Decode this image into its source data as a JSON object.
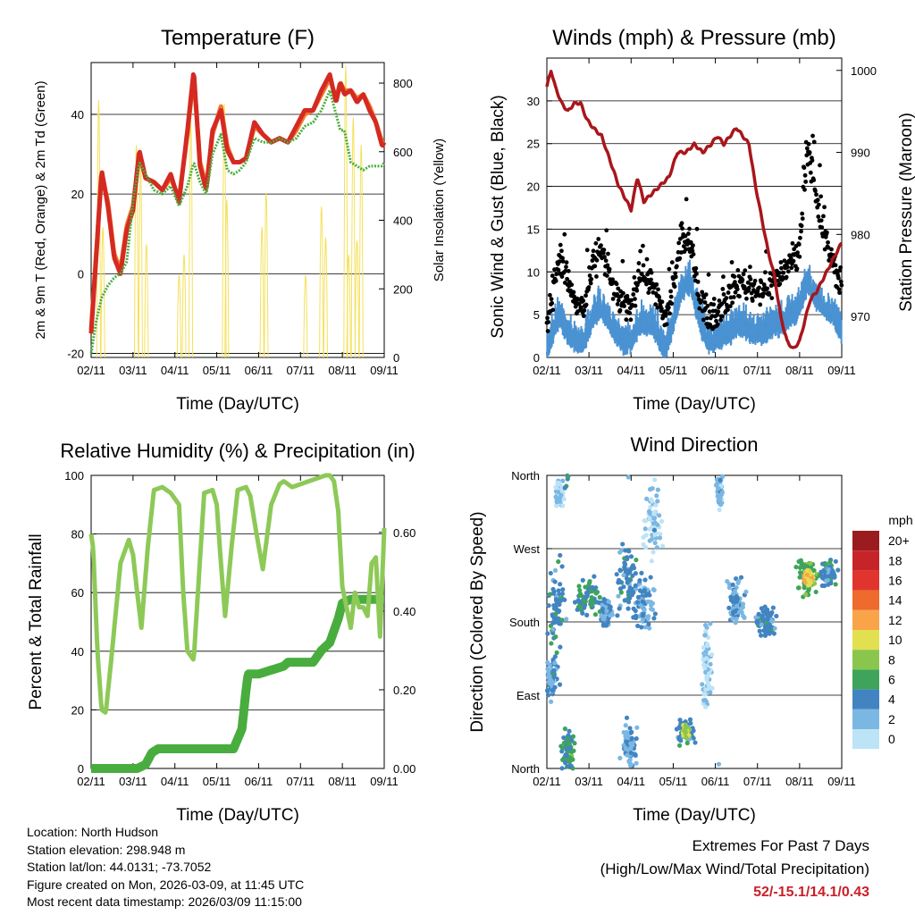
{
  "chart_data": [
    {
      "id": "temp",
      "type": "line",
      "title": "Temperature (F)",
      "xlabel": "Time (Day/UTC)",
      "ylabel_left": "2m & 9m T (Red, Orange) & 2m Td (Green)",
      "ylabel_right": "Solar Insolation (Yellow)",
      "x_ticks": [
        "02/11",
        "03/11",
        "04/11",
        "05/11",
        "06/11",
        "07/11",
        "08/11",
        "09/11"
      ],
      "x_range": [
        0,
        7
      ],
      "ylim_left": [
        -21,
        53
      ],
      "yticks_left": [
        -20,
        0,
        20,
        40
      ],
      "ylim_right": [
        0,
        860
      ],
      "yticks_right": [
        0,
        200,
        400,
        600,
        800
      ],
      "series": [
        {
          "name": "9m T",
          "color": "#f07a2c",
          "x": [
            0,
            0.12,
            0.25,
            0.4,
            0.55,
            0.7,
            0.85,
            1.0,
            1.15,
            1.3,
            1.5,
            1.7,
            1.9,
            2.1,
            2.3,
            2.45,
            2.6,
            2.75,
            2.9,
            3.1,
            3.25,
            3.4,
            3.55,
            3.7,
            3.9,
            4.1,
            4.3,
            4.5,
            4.7,
            4.9,
            5.1,
            5.3,
            5.5,
            5.7,
            5.85,
            5.95,
            6.05,
            6.2,
            6.35,
            6.5,
            6.65,
            6.8,
            6.95,
            7.0
          ],
          "values": [
            -14,
            5,
            25,
            18,
            5,
            1,
            12,
            17,
            30,
            24,
            23,
            21,
            24,
            19,
            35,
            50,
            28,
            22,
            35,
            42,
            32,
            28,
            28,
            29,
            37,
            35,
            33,
            34,
            33,
            36,
            40,
            41,
            45,
            49,
            44,
            48,
            46,
            46,
            44,
            45,
            42,
            38,
            33,
            33
          ]
        },
        {
          "name": "2m T",
          "color": "#d42a22",
          "x": [
            0,
            0.12,
            0.25,
            0.4,
            0.55,
            0.7,
            0.85,
            1.0,
            1.15,
            1.3,
            1.5,
            1.7,
            1.9,
            2.1,
            2.3,
            2.45,
            2.6,
            2.75,
            2.9,
            3.1,
            3.25,
            3.4,
            3.55,
            3.7,
            3.9,
            4.1,
            4.3,
            4.5,
            4.7,
            4.9,
            5.1,
            5.3,
            5.5,
            5.7,
            5.85,
            5.95,
            6.05,
            6.2,
            6.35,
            6.5,
            6.65,
            6.8,
            6.95,
            7.0
          ],
          "values": [
            -15,
            4,
            26,
            17,
            4,
            0,
            11,
            16,
            31,
            24,
            23,
            21,
            25,
            18,
            36,
            51,
            27,
            21,
            36,
            41,
            31,
            28,
            28,
            29,
            38,
            35,
            33,
            34,
            33,
            37,
            41,
            41,
            46,
            50,
            43,
            48,
            45,
            46,
            43,
            45,
            41,
            38,
            32,
            33
          ]
        },
        {
          "name": "2m Td",
          "color": "#4bae3c",
          "x": [
            0,
            0.12,
            0.25,
            0.4,
            0.55,
            0.7,
            0.85,
            1.0,
            1.15,
            1.3,
            1.5,
            1.7,
            1.9,
            2.1,
            2.3,
            2.45,
            2.6,
            2.75,
            2.9,
            3.1,
            3.25,
            3.4,
            3.55,
            3.7,
            3.9,
            4.1,
            4.3,
            4.5,
            4.7,
            4.9,
            5.1,
            5.3,
            5.5,
            5.7,
            5.85,
            5.95,
            6.05,
            6.2,
            6.35,
            6.5,
            6.65,
            6.8,
            6.95,
            7.0
          ],
          "values": [
            -20,
            -12,
            -6,
            -3,
            -1,
            0,
            3,
            18,
            28,
            25,
            21,
            20,
            22,
            17,
            22,
            28,
            23,
            20,
            30,
            35,
            26,
            25,
            26,
            28,
            34,
            33,
            33,
            34,
            33,
            34,
            37,
            38,
            41,
            46,
            40,
            36,
            36,
            28,
            27,
            26,
            27,
            27,
            27,
            28
          ]
        },
        {
          "name": "Solar Insolation",
          "color": "#f5e05a",
          "axis": "right",
          "peaks_x": [
            0.18,
            0.28,
            1.08,
            1.18,
            1.32,
            2.1,
            2.22,
            2.38,
            3.18,
            3.24,
            4.08,
            4.18,
            5.12,
            5.5,
            5.6,
            6.08,
            6.15,
            6.26,
            6.35,
            6.45
          ],
          "peaks_value": [
            750,
            380,
            620,
            560,
            330,
            240,
            300,
            690,
            740,
            460,
            380,
            480,
            240,
            440,
            350,
            850,
            300,
            700,
            340,
            620
          ]
        }
      ]
    },
    {
      "id": "wind",
      "type": "scatter",
      "title": "Winds (mph) & Pressure (mb)",
      "xlabel": "Time (Day/UTC)",
      "ylabel_left": "Sonic Wind & Gust (Blue, Black)",
      "ylabel_right": "Station Pressure (Maroon)",
      "x_ticks": [
        "02/11",
        "03/11",
        "04/11",
        "05/11",
        "06/11",
        "07/11",
        "08/11",
        "09/11"
      ],
      "x_range": [
        0,
        7
      ],
      "ylim_left": [
        0,
        35
      ],
      "yticks_left": [
        0,
        5,
        10,
        15,
        20,
        25,
        30
      ],
      "ylim_right": [
        965,
        1001.5
      ],
      "yticks_right": [
        970,
        980,
        990,
        1000
      ],
      "series": [
        {
          "name": "Sonic Wind",
          "color": "#4a92d2",
          "x": [
            0,
            0.3,
            0.5,
            0.7,
            0.9,
            1.1,
            1.3,
            1.5,
            1.8,
            2.0,
            2.2,
            2.5,
            2.8,
            3.0,
            3.2,
            3.4,
            3.6,
            3.8,
            4.0,
            4.3,
            4.6,
            4.9,
            5.2,
            5.4,
            5.6,
            5.8,
            6.0,
            6.2,
            6.4,
            6.6,
            6.8,
            7.0
          ],
          "values": [
            2,
            6,
            4,
            3,
            3,
            6,
            7,
            5,
            3,
            3,
            5,
            5,
            2,
            5,
            9,
            10,
            6,
            3,
            3,
            4,
            5,
            4,
            4,
            5,
            5,
            6,
            7,
            10,
            8,
            7,
            6,
            4
          ]
        },
        {
          "name": "Gust",
          "color": "#000000",
          "x": [
            0,
            0.3,
            0.5,
            0.7,
            0.9,
            1.1,
            1.3,
            1.5,
            1.8,
            2.0,
            2.2,
            2.5,
            2.8,
            3.0,
            3.2,
            3.4,
            3.6,
            3.8,
            4.0,
            4.3,
            4.6,
            4.9,
            5.2,
            5.4,
            5.6,
            5.8,
            6.0,
            6.2,
            6.4,
            6.6,
            6.8,
            7.0
          ],
          "values": [
            4,
            12,
            9,
            6,
            6,
            11,
            13,
            9,
            6,
            6,
            10,
            9,
            4,
            8,
            14,
            13,
            8,
            5,
            5,
            7,
            9,
            8,
            8,
            9,
            10,
            11,
            13,
            25,
            18,
            14,
            11,
            8
          ]
        },
        {
          "name": "Station Pressure",
          "color": "#a8161c",
          "axis": "right",
          "x": [
            0,
            0.1,
            0.2,
            0.35,
            0.5,
            0.65,
            0.8,
            0.95,
            1.1,
            1.3,
            1.5,
            1.7,
            1.9,
            2.0,
            2.15,
            2.3,
            2.5,
            2.7,
            2.9,
            3.1,
            3.3,
            3.5,
            3.7,
            3.9,
            4.05,
            4.2,
            4.35,
            4.5,
            4.65,
            4.8,
            4.95,
            5.1,
            5.25,
            5.4,
            5.55,
            5.7,
            5.85,
            6.0,
            6.15,
            6.25,
            6.4,
            6.6,
            6.8,
            7.0
          ],
          "values": [
            998,
            1000,
            998,
            996,
            995,
            996,
            996,
            994,
            993,
            992,
            989,
            986,
            984,
            983,
            987,
            984,
            985,
            986,
            987,
            990,
            990,
            991,
            990,
            991,
            992,
            991,
            992,
            993,
            992,
            991,
            986,
            982,
            978,
            975,
            970,
            967,
            966,
            967,
            970,
            972,
            973,
            975,
            977,
            979
          ]
        }
      ]
    },
    {
      "id": "rh",
      "type": "line",
      "title": "Relative Humidity (%) & Precipitation (in)",
      "xlabel": "Time (Day/UTC)",
      "ylabel_left": "Percent & Total Rainfall",
      "x_ticks": [
        "02/11",
        "03/11",
        "04/11",
        "05/11",
        "06/11",
        "07/11",
        "08/11",
        "09/11"
      ],
      "x_range": [
        0,
        7
      ],
      "ylim_left": [
        0,
        100
      ],
      "yticks_left": [
        0,
        20,
        40,
        60,
        80,
        100
      ],
      "ylim_right": [
        0,
        0.745
      ],
      "yticks_right": [
        0.0,
        0.2,
        0.4,
        0.6
      ],
      "ytick_labels_right": [
        "0.00",
        "0.20",
        "0.40",
        "0.60"
      ],
      "series": [
        {
          "name": "Relative Humidity",
          "color": "#8dc957",
          "x": [
            0,
            0.05,
            0.15,
            0.25,
            0.35,
            0.5,
            0.7,
            0.9,
            1.0,
            1.1,
            1.2,
            1.35,
            1.5,
            1.7,
            1.9,
            2.1,
            2.2,
            2.3,
            2.45,
            2.55,
            2.7,
            2.9,
            3.0,
            3.1,
            3.2,
            3.35,
            3.5,
            3.7,
            3.8,
            3.95,
            4.1,
            4.3,
            4.5,
            4.6,
            4.8,
            5.0,
            5.2,
            5.4,
            5.6,
            5.7,
            5.8,
            5.9,
            6.0,
            6.1,
            6.2,
            6.3,
            6.4,
            6.5,
            6.6,
            6.7,
            6.8,
            6.9,
            7.0
          ],
          "values": [
            80,
            75,
            40,
            20,
            19,
            40,
            70,
            78,
            73,
            60,
            48,
            75,
            95,
            96,
            94,
            90,
            60,
            40,
            37,
            60,
            94,
            95,
            90,
            70,
            52,
            75,
            95,
            96,
            93,
            80,
            68,
            90,
            97,
            98,
            96,
            97,
            98,
            99,
            100,
            100,
            98,
            88,
            62,
            55,
            48,
            60,
            55,
            55,
            52,
            70,
            72,
            45,
            82
          ]
        },
        {
          "name": "Total Precipitation",
          "color": "#48ad3e",
          "axis": "right",
          "x": [
            0,
            1.1,
            1.3,
            1.45,
            1.6,
            2.0,
            2.5,
            3.0,
            3.4,
            3.6,
            3.7,
            3.75,
            4.0,
            4.3,
            4.6,
            4.7,
            5.0,
            5.3,
            5.5,
            5.7,
            5.9,
            6.0,
            6.2,
            6.5,
            7.0
          ],
          "values": [
            0,
            0,
            0.01,
            0.04,
            0.05,
            0.05,
            0.05,
            0.05,
            0.05,
            0.1,
            0.2,
            0.24,
            0.24,
            0.25,
            0.26,
            0.27,
            0.27,
            0.27,
            0.3,
            0.32,
            0.38,
            0.42,
            0.43,
            0.43,
            0.43
          ]
        }
      ]
    },
    {
      "id": "wdir",
      "type": "scatter",
      "title": "Wind Direction",
      "xlabel": "Time (Day/UTC)",
      "ylabel_left": "Direction (Colored By Speed)",
      "x_ticks": [
        "02/11",
        "03/11",
        "04/11",
        "05/11",
        "06/11",
        "07/11",
        "08/11",
        "09/11"
      ],
      "x_range": [
        0,
        7
      ],
      "ylim_left": [
        0,
        360
      ],
      "ytick_labels": [
        "North",
        "East",
        "South",
        "West",
        "North"
      ],
      "yticks_left": [
        0,
        90,
        180,
        270,
        360
      ],
      "clusters": [
        {
          "x": 0.1,
          "dir": 110,
          "spread_x": 0.25,
          "spread_dir": 40,
          "speed": 3
        },
        {
          "x": 0.2,
          "dir": 200,
          "spread_x": 0.3,
          "spread_dir": 80,
          "speed": 4
        },
        {
          "x": 0.3,
          "dir": 340,
          "spread_x": 0.15,
          "spread_dir": 30,
          "speed": 1
        },
        {
          "x": 0.5,
          "dir": 20,
          "spread_x": 0.2,
          "spread_dir": 40,
          "speed": 5
        },
        {
          "x": 1.0,
          "dir": 210,
          "spread_x": 0.4,
          "spread_dir": 30,
          "speed": 5
        },
        {
          "x": 1.4,
          "dir": 190,
          "spread_x": 0.2,
          "spread_dir": 25,
          "speed": 3
        },
        {
          "x": 1.9,
          "dir": 230,
          "spread_x": 0.4,
          "spread_dir": 60,
          "speed": 4
        },
        {
          "x": 1.95,
          "dir": 30,
          "spread_x": 0.3,
          "spread_dir": 40,
          "speed": 3
        },
        {
          "x": 2.5,
          "dir": 300,
          "spread_x": 0.3,
          "spread_dir": 60,
          "speed": 1
        },
        {
          "x": 2.3,
          "dir": 200,
          "spread_x": 0.3,
          "spread_dir": 50,
          "speed": 3
        },
        {
          "x": 3.3,
          "dir": 45,
          "spread_x": 0.3,
          "spread_dir": 20,
          "speed": 4
        },
        {
          "x": 3.3,
          "dir": 45,
          "spread_x": 0.1,
          "spread_dir": 10,
          "speed": 9
        },
        {
          "x": 3.8,
          "dir": 130,
          "spread_x": 0.15,
          "spread_dir": 80,
          "speed": 1
        },
        {
          "x": 4.1,
          "dir": 340,
          "spread_x": 0.1,
          "spread_dir": 30,
          "speed": 2
        },
        {
          "x": 4.5,
          "dir": 200,
          "spread_x": 0.3,
          "spread_dir": 40,
          "speed": 3
        },
        {
          "x": 5.2,
          "dir": 180,
          "spread_x": 0.3,
          "spread_dir": 25,
          "speed": 4
        },
        {
          "x": 6.2,
          "dir": 235,
          "spread_x": 0.4,
          "spread_dir": 30,
          "speed": 6
        },
        {
          "x": 6.2,
          "dir": 235,
          "spread_x": 0.15,
          "spread_dir": 15,
          "speed": 11
        },
        {
          "x": 6.7,
          "dir": 240,
          "spread_x": 0.25,
          "spread_dir": 25,
          "speed": 4
        }
      ],
      "colorbar": {
        "title": "mph",
        "labels": [
          "20+",
          "18",
          "16",
          "14",
          "12",
          "10",
          "8",
          "6",
          "4",
          "2",
          "0"
        ],
        "colors": [
          "#9b1c1f",
          "#c7242a",
          "#e0352d",
          "#ef6a2d",
          "#f9a449",
          "#e2df50",
          "#8bc64c",
          "#3ea45b",
          "#4284c2",
          "#7bb7e3",
          "#bde3f6"
        ]
      }
    }
  ],
  "info": {
    "location": "Location: North Hudson",
    "elevation": "Station elevation: 298.948 m",
    "latlon": "Station lat/lon: 44.0131; -73.7052",
    "created": "Figure created on Mon, 2026-03-09, at 11:45 UTC",
    "recent": "Most recent data timestamp: 2026/03/09 11:15:00"
  },
  "extremes": {
    "line1": "Extremes For Past 7 Days",
    "line2": "(High/Low/Max Wind/Total Precipitation)",
    "value": "52/-15.1/14.1/0.43"
  }
}
